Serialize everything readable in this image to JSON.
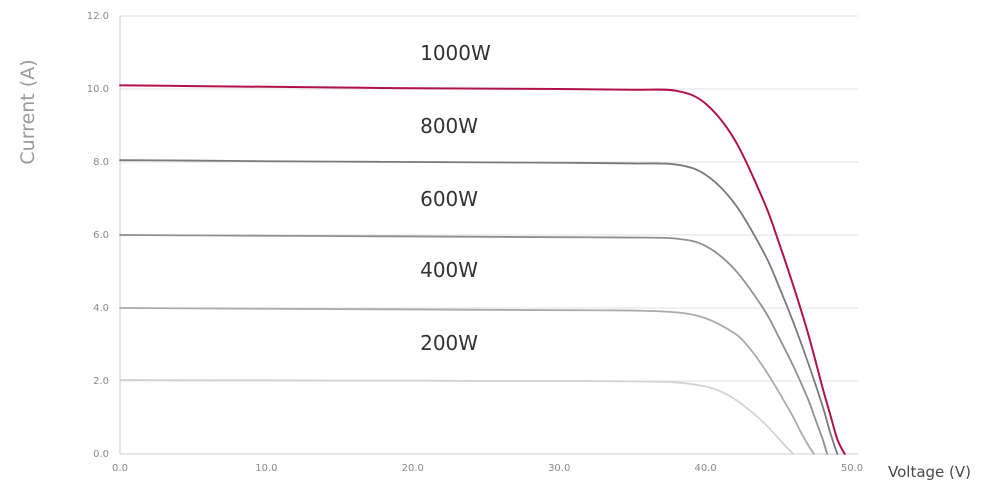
{
  "chart_data": {
    "type": "line",
    "title": "",
    "xlabel": "Voltage (V)",
    "ylabel": "Current (A)",
    "xlim": [
      0,
      50
    ],
    "ylim": [
      0,
      12
    ],
    "x_ticks": [
      0,
      10,
      20,
      30,
      40,
      50
    ],
    "y_ticks": [
      0,
      2,
      4,
      6,
      8,
      10,
      12
    ],
    "x_tick_labels": [
      "0.0",
      "10.0",
      "20.0",
      "30.0",
      "40.0",
      "50.0"
    ],
    "y_tick_labels": [
      "0.0",
      "2.0",
      "4.0",
      "6.0",
      "8.0",
      "10.0",
      "12.0"
    ],
    "grid": "horizontal",
    "series": [
      {
        "name": "1000W",
        "color": "#b0124a",
        "x": [
          0,
          5,
          10,
          15,
          20,
          25,
          30,
          35,
          38,
          40,
          42,
          44,
          45,
          46,
          47,
          48,
          48.5,
          49,
          49.5
        ],
        "y": [
          10.1,
          10.08,
          10.06,
          10.04,
          10.02,
          10.01,
          10.0,
          9.98,
          9.95,
          9.6,
          8.6,
          6.9,
          5.8,
          4.6,
          3.3,
          1.8,
          1.1,
          0.4,
          0.0
        ]
      },
      {
        "name": "800W",
        "color": "#7a7a7a",
        "x": [
          0,
          5,
          10,
          15,
          20,
          25,
          30,
          35,
          38,
          40,
          42,
          44,
          45,
          46,
          47,
          48,
          48.5,
          49
        ],
        "y": [
          8.05,
          8.04,
          8.02,
          8.01,
          8.0,
          7.99,
          7.98,
          7.96,
          7.93,
          7.65,
          6.85,
          5.5,
          4.6,
          3.6,
          2.5,
          1.3,
          0.6,
          0.0
        ]
      },
      {
        "name": "600W",
        "color": "#909090",
        "x": [
          0,
          5,
          10,
          15,
          20,
          25,
          30,
          35,
          38,
          40,
          42,
          44,
          45,
          46,
          47,
          47.5,
          48,
          48.3
        ],
        "y": [
          6.0,
          5.99,
          5.98,
          5.97,
          5.96,
          5.95,
          5.94,
          5.93,
          5.9,
          5.7,
          5.05,
          3.95,
          3.2,
          2.4,
          1.5,
          0.95,
          0.4,
          0.0
        ]
      },
      {
        "name": "400W",
        "color": "#ababab",
        "x": [
          0,
          5,
          10,
          15,
          20,
          25,
          30,
          35,
          38,
          40,
          42,
          43,
          44,
          45,
          46,
          46.5,
          47,
          47.4
        ],
        "y": [
          4.0,
          3.99,
          3.98,
          3.97,
          3.96,
          3.95,
          3.94,
          3.93,
          3.88,
          3.72,
          3.3,
          2.9,
          2.35,
          1.7,
          1.0,
          0.6,
          0.25,
          0.0
        ]
      },
      {
        "name": "200W",
        "color": "#d3d3d3",
        "x": [
          0,
          5,
          10,
          15,
          20,
          25,
          30,
          35,
          38,
          40,
          41,
          42,
          43,
          44,
          45,
          45.5,
          46
        ],
        "y": [
          2.03,
          2.02,
          2.02,
          2.01,
          2.01,
          2.0,
          2.0,
          1.99,
          1.96,
          1.85,
          1.72,
          1.5,
          1.2,
          0.85,
          0.42,
          0.2,
          0.0
        ]
      }
    ],
    "annotations": [
      {
        "text": "1000W",
        "x": 20.5,
        "y": 10.8
      },
      {
        "text": "800W",
        "x": 20.5,
        "y": 8.8
      },
      {
        "text": "600W",
        "x": 20.5,
        "y": 6.8
      },
      {
        "text": "400W",
        "x": 20.5,
        "y": 4.85
      },
      {
        "text": "200W",
        "x": 20.5,
        "y": 2.85
      }
    ]
  }
}
